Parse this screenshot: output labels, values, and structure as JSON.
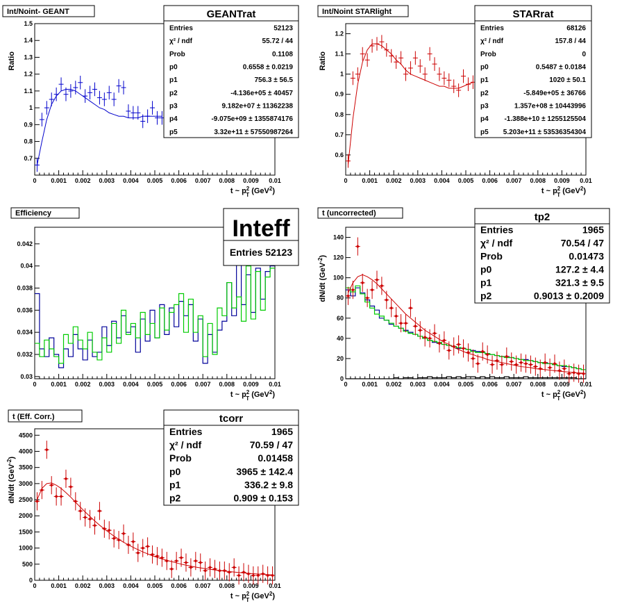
{
  "panels": [
    {
      "title": "Int/Noint- GEANT",
      "type": "ratio",
      "xlabel": "t ~ p",
      "xlabel_sub": "T",
      "xlabel_sup": "2",
      "xlabel_unit": " (GeV",
      "xlabel_unit_sup": "2",
      "ylabel": "Ratio",
      "xlim": [
        0,
        0.01
      ],
      "ylim": [
        0.6,
        1.5
      ],
      "xticks": [
        "0",
        "0.001",
        "0.002",
        "0.003",
        "0.004",
        "0.005",
        "0.006",
        "0.007",
        "0.008",
        "0.009",
        "0.01"
      ],
      "yticks": [
        "0.7",
        "0.8",
        "0.9",
        "1",
        "1.1",
        "1.2",
        "1.3",
        "1.4",
        "1.5"
      ],
      "color": "#0000cc",
      "stats": {
        "title": "GEANTrat",
        "rows": [
          [
            "Entries",
            "52123"
          ],
          [
            "χ² / ndf",
            "55.72 / 44"
          ],
          [
            "Prob",
            "0.1108"
          ],
          [
            "p0",
            "0.6558 ± 0.0219"
          ],
          [
            "p1",
            "756.3 ± 56.5"
          ],
          [
            "p2",
            "-4.136e+05 ± 40457"
          ],
          [
            "p3",
            "9.182e+07 ± 11362238"
          ],
          [
            "p4",
            "-9.075e+09 ± 1355874176"
          ],
          [
            "p5",
            "3.32e+11 ± 57550987264"
          ]
        ]
      },
      "chart_data": {
        "type": "scatter",
        "x": [
          0.0001,
          0.0003,
          0.0005,
          0.0007,
          0.0009,
          0.0011,
          0.0013,
          0.0015,
          0.0017,
          0.0019,
          0.0021,
          0.0023,
          0.0025,
          0.0027,
          0.0029,
          0.0031,
          0.0033,
          0.0035,
          0.0037,
          0.0039,
          0.0041,
          0.0043,
          0.0045,
          0.0047,
          0.0049,
          0.0051,
          0.0053
        ],
        "y": [
          0.66,
          0.93,
          1.0,
          1.05,
          1.08,
          1.14,
          1.08,
          1.1,
          1.12,
          1.15,
          1.07,
          1.09,
          1.11,
          1.06,
          1.05,
          1.09,
          1.05,
          1.13,
          1.12,
          0.98,
          0.97,
          0.97,
          0.92,
          0.95,
          1.0,
          0.94,
          0.94
        ],
        "fit": [
          0.66,
          0.8,
          0.93,
          1.02,
          1.07,
          1.1,
          1.11,
          1.11,
          1.1,
          1.08,
          1.06,
          1.04,
          1.02,
          1.0,
          0.99,
          0.97,
          0.96,
          0.95,
          0.95,
          0.94,
          0.94,
          0.94,
          0.95,
          0.95,
          0.95,
          0.95,
          0.95
        ]
      }
    },
    {
      "title": "Int/Noint STARlight",
      "type": "ratio",
      "xlabel": "t ~ p",
      "xlabel_sub": "T",
      "xlabel_sup": "2",
      "xlabel_unit": " (GeV",
      "xlabel_unit_sup": "2",
      "ylabel": "Ratio",
      "xlim": [
        0,
        0.01
      ],
      "ylim": [
        0.5,
        1.25
      ],
      "xticks": [
        "0",
        "0.001",
        "0.002",
        "0.003",
        "0.004",
        "0.005",
        "0.006",
        "0.007",
        "0.008",
        "0.009",
        "0.01"
      ],
      "yticks": [
        "0.6",
        "0.7",
        "0.8",
        "0.9",
        "1",
        "1.1",
        "1.2"
      ],
      "color": "#cc0000",
      "stats": {
        "title": "STARrat",
        "rows": [
          [
            "Entries",
            "68126"
          ],
          [
            "χ² / ndf",
            "157.8 / 44"
          ],
          [
            "Prob",
            "0"
          ],
          [
            "p0",
            "0.5487 ± 0.0184"
          ],
          [
            "p1",
            "1020 ± 50.1"
          ],
          [
            "p2",
            "-5.849e+05 ± 36766"
          ],
          [
            "p3",
            "1.357e+08 ± 10443996"
          ],
          [
            "p4",
            "-1.388e+10 ± 1255125504"
          ],
          [
            "p5",
            "5.203e+11 ± 53536354304"
          ]
        ]
      },
      "chart_data": {
        "type": "scatter",
        "x": [
          0.0001,
          0.0003,
          0.0005,
          0.0007,
          0.0009,
          0.0011,
          0.0013,
          0.0015,
          0.0017,
          0.0019,
          0.0021,
          0.0023,
          0.0025,
          0.0027,
          0.0029,
          0.0031,
          0.0033,
          0.0035,
          0.0037,
          0.0039,
          0.0041,
          0.0043,
          0.0045,
          0.0047,
          0.0049,
          0.0051,
          0.0053
        ],
        "y": [
          0.57,
          0.98,
          1.0,
          1.1,
          1.07,
          1.14,
          1.15,
          1.16,
          1.12,
          1.09,
          1.06,
          1.08,
          1.0,
          1.03,
          1.08,
          1.04,
          1.0,
          1.1,
          1.05,
          1.0,
          0.98,
          0.97,
          0.94,
          0.92,
          0.99,
          0.95,
          0.96
        ],
        "fit": [
          0.55,
          0.78,
          0.95,
          1.06,
          1.12,
          1.15,
          1.15,
          1.14,
          1.12,
          1.1,
          1.07,
          1.05,
          1.02,
          1.0,
          0.99,
          0.98,
          0.97,
          0.96,
          0.95,
          0.94,
          0.94,
          0.93,
          0.93,
          0.93,
          0.94,
          0.95,
          0.96
        ]
      }
    },
    {
      "title": "Efficiency",
      "type": "hist",
      "xlabel": "t ~ p",
      "xlabel_sub": "T",
      "xlabel_sup": "2",
      "xlabel_unit": " (GeV",
      "xlabel_unit_sup": "2",
      "ylabel": "",
      "xlim": [
        0,
        0.01
      ],
      "ylim": [
        0.0298,
        0.0435
      ],
      "xticks": [
        "0",
        "0.001",
        "0.002",
        "0.003",
        "0.004",
        "0.005",
        "0.006",
        "0.007",
        "0.008",
        "0.009",
        "0.01"
      ],
      "yticks": [
        "0.03",
        "0.032",
        "0.034",
        "0.036",
        "0.038",
        "0.04",
        "0.042"
      ],
      "stats": {
        "title": "Inteff",
        "rows": [
          [
            "Entries",
            "52123"
          ]
        ]
      },
      "chart_data": {
        "type": "area",
        "series": [
          {
            "color": "#000099",
            "values": [
              0.0375,
              0.0325,
              0.0318,
              0.0335,
              0.032,
              0.0308,
              0.0325,
              0.0318,
              0.0338,
              0.0325,
              0.0315,
              0.0333,
              0.0318,
              0.0322,
              0.0345,
              0.0328,
              0.035,
              0.0335,
              0.0355,
              0.034,
              0.0345,
              0.0322,
              0.0352,
              0.0332,
              0.036,
              0.0335,
              0.0365,
              0.0338,
              0.0362,
              0.0345,
              0.0368,
              0.0355,
              0.0365,
              0.0332,
              0.0352,
              0.0312,
              0.0338,
              0.0322,
              0.0342,
              0.035,
              0.0385,
              0.0355,
              0.0405,
              0.0365,
              0.0392,
              0.0358,
              0.0398,
              0.037,
              0.0395,
              0.04
            ]
          },
          {
            "color": "#00cc00",
            "values": [
              0.033,
              0.0318,
              0.0333,
              0.0325,
              0.0318,
              0.0312,
              0.0338,
              0.033,
              0.0345,
              0.0333,
              0.0325,
              0.034,
              0.0322,
              0.0315,
              0.0335,
              0.0322,
              0.0348,
              0.033,
              0.036,
              0.0338,
              0.0348,
              0.0335,
              0.0358,
              0.0338,
              0.0348,
              0.0335,
              0.0362,
              0.0342,
              0.0358,
              0.0365,
              0.0375,
              0.034,
              0.037,
              0.034,
              0.0355,
              0.0318,
              0.0348,
              0.032,
              0.0362,
              0.0355,
              0.0385,
              0.0362,
              0.0372,
              0.035,
              0.04,
              0.0352,
              0.0395,
              0.036,
              0.039,
              0.0398
            ]
          }
        ]
      }
    },
    {
      "title": "t (uncorrected)",
      "type": "counts",
      "xlabel": "t ~ p",
      "xlabel_sub": "T",
      "xlabel_sup": "2",
      "xlabel_unit": " (GeV",
      "xlabel_unit_sup": "2",
      "ylabel": "dN/dt (GeV",
      "ylabel_sup": "-2",
      "xlim": [
        0,
        0.01
      ],
      "ylim": [
        0,
        150
      ],
      "xticks": [
        "0",
        "0.001",
        "0.002",
        "0.003",
        "0.004",
        "0.005",
        "0.006",
        "0.007",
        "0.008",
        "0.009",
        "0.01"
      ],
      "yticks": [
        "0",
        "20",
        "40",
        "60",
        "80",
        "100",
        "120",
        "140"
      ],
      "stats": {
        "title": "tp2",
        "rows": [
          [
            "Entries",
            "1965"
          ],
          [
            "χ² / ndf",
            "70.54 / 47"
          ],
          [
            "Prob",
            "0.01473"
          ],
          [
            "p0",
            "127.2 ± 4.4"
          ],
          [
            "p1",
            "321.3 ± 9.5"
          ],
          [
            "p2",
            "0.9013 ± 0.2009"
          ]
        ]
      },
      "chart_data": {
        "type": "scatter",
        "x": [
          0.0001,
          0.0003,
          0.0005,
          0.0007,
          0.0009,
          0.0011,
          0.0013,
          0.0015,
          0.0017,
          0.0019,
          0.0021,
          0.0023,
          0.0025,
          0.0027,
          0.0029,
          0.0031,
          0.0033,
          0.0035,
          0.0037,
          0.0039,
          0.0041,
          0.0043,
          0.0045,
          0.0047,
          0.0049,
          0.0051,
          0.0053,
          0.0055,
          0.0057,
          0.0059,
          0.0061,
          0.0063,
          0.0065,
          0.0067,
          0.0069,
          0.0071,
          0.0073,
          0.0075,
          0.0077,
          0.0079,
          0.0081,
          0.0083,
          0.0085,
          0.0087,
          0.0089,
          0.0091,
          0.0093,
          0.0095,
          0.0097,
          0.0099
        ],
        "y": [
          82,
          88,
          131,
          95,
          80,
          88,
          98,
          92,
          78,
          70,
          62,
          55,
          55,
          70,
          52,
          48,
          41,
          40,
          45,
          35,
          38,
          28,
          32,
          34,
          30,
          26,
          20,
          15,
          27,
          24,
          14,
          18,
          14,
          22,
          17,
          14,
          16,
          15,
          14,
          12,
          10,
          16,
          11,
          15,
          8,
          10,
          5,
          6,
          5,
          5
        ],
        "fit": [
          85,
          95,
          101,
          103,
          101,
          98,
          94,
          89,
          84,
          79,
          74,
          69,
          64,
          60,
          56,
          52,
          48,
          45,
          42,
          39,
          36,
          34,
          31,
          29,
          27,
          25,
          24,
          22,
          21,
          19,
          18,
          17,
          16,
          15,
          14,
          13,
          12,
          11.5,
          11,
          10,
          9.5,
          9,
          8.5,
          8,
          7.5,
          7,
          6.6,
          6.2,
          5.8,
          5.5
        ],
        "series": [
          {
            "color": "#000099",
            "values": [
              88,
              82,
              90,
              85,
              78,
              72,
              68,
              60,
              58,
              54,
              52,
              50,
              48,
              46,
              44,
              42,
              40,
              38,
              36,
              35,
              34,
              33,
              32,
              30,
              30,
              29,
              28,
              27,
              26,
              25,
              24,
              23,
              22,
              22,
              21,
              20,
              19,
              19,
              18,
              17,
              16,
              16,
              15,
              14,
              13,
              12,
              12,
              11,
              10,
              9
            ]
          },
          {
            "color": "#00cc00",
            "values": [
              90,
              86,
              92,
              84,
              76,
              70,
              64,
              62,
              58,
              55,
              52,
              50,
              47,
              45,
              44,
              42,
              40,
              38,
              37,
              36,
              34,
              33,
              32,
              31,
              30,
              29,
              27,
              26,
              26,
              25,
              24,
              23,
              22,
              21,
              21,
              20,
              19,
              18,
              18,
              17,
              16,
              15,
              15,
              14,
              13,
              13,
              12,
              11,
              10,
              9
            ]
          },
          {
            "color": "#000000",
            "values": [
              0,
              0,
              0,
              0,
              0,
              0,
              0,
              0,
              0,
              0,
              1,
              0,
              1,
              1,
              0,
              1,
              1,
              2,
              1,
              1,
              1,
              2,
              1,
              2,
              1,
              2,
              2,
              1,
              2,
              1,
              2,
              1,
              1,
              2,
              1,
              1,
              1,
              2,
              1,
              1,
              1,
              1,
              1,
              1,
              1,
              1,
              1,
              1,
              0,
              0
            ]
          }
        ]
      }
    },
    {
      "title": "t (Eff. Corr.)",
      "type": "counts",
      "xlabel": "t ~ p",
      "xlabel_sub": "T",
      "xlabel_sup": "2",
      "xlabel_unit": " (GeV",
      "xlabel_unit_sup": "2",
      "ylabel": "dN/dt (GeV",
      "ylabel_sup": "-2",
      "xlim": [
        0,
        0.01
      ],
      "ylim": [
        0,
        4700
      ],
      "xticks": [
        "0",
        "0.001",
        "0.002",
        "0.003",
        "0.004",
        "0.005",
        "0.006",
        "0.007",
        "0.008",
        "0.009",
        "0.01"
      ],
      "yticks": [
        "0",
        "500",
        "1000",
        "1500",
        "2000",
        "2500",
        "3000",
        "3500",
        "4000",
        "4500"
      ],
      "stats": {
        "title": "tcorr",
        "rows": [
          [
            "Entries",
            "1965"
          ],
          [
            "χ² / ndf",
            "70.59 / 47"
          ],
          [
            "Prob",
            "0.01458"
          ],
          [
            "p0",
            "3965 ± 142.4"
          ],
          [
            "p1",
            "336.2 ± 9.8"
          ],
          [
            "p2",
            "0.909 ± 0.153"
          ]
        ]
      },
      "chart_data": {
        "type": "scatter",
        "x": [
          0.0001,
          0.0003,
          0.0005,
          0.0007,
          0.0009,
          0.0011,
          0.0013,
          0.0015,
          0.0017,
          0.0019,
          0.0021,
          0.0023,
          0.0025,
          0.0027,
          0.0029,
          0.0031,
          0.0033,
          0.0035,
          0.0037,
          0.0039,
          0.0041,
          0.0043,
          0.0045,
          0.0047,
          0.0049,
          0.0051,
          0.0053,
          0.0055,
          0.0057,
          0.0059,
          0.0061,
          0.0063,
          0.0065,
          0.0067,
          0.0069,
          0.0071,
          0.0073,
          0.0075,
          0.0077,
          0.0079,
          0.0081,
          0.0083,
          0.0085,
          0.0087,
          0.0089,
          0.0091,
          0.0093,
          0.0095,
          0.0097,
          0.0099
        ],
        "y": [
          2450,
          2800,
          4050,
          2950,
          2600,
          2600,
          3150,
          2900,
          2450,
          2150,
          1950,
          1900,
          1700,
          2150,
          1600,
          1550,
          1300,
          1250,
          1450,
          1100,
          1200,
          850,
          1000,
          1050,
          800,
          750,
          700,
          600,
          350,
          600,
          700,
          550,
          400,
          600,
          550,
          300,
          400,
          350,
          300,
          300,
          250,
          400,
          150,
          250,
          200,
          150,
          150,
          200,
          150,
          150
        ],
        "fit": [
          2500,
          2850,
          3000,
          3020,
          2950,
          2850,
          2720,
          2580,
          2420,
          2270,
          2120,
          1980,
          1840,
          1710,
          1590,
          1480,
          1370,
          1270,
          1180,
          1100,
          1020,
          950,
          880,
          820,
          760,
          710,
          660,
          620,
          580,
          540,
          500,
          470,
          440,
          410,
          385,
          360,
          340,
          320,
          300,
          285,
          270,
          255,
          240,
          228,
          216,
          205,
          195,
          185,
          176,
          168
        ]
      }
    }
  ]
}
